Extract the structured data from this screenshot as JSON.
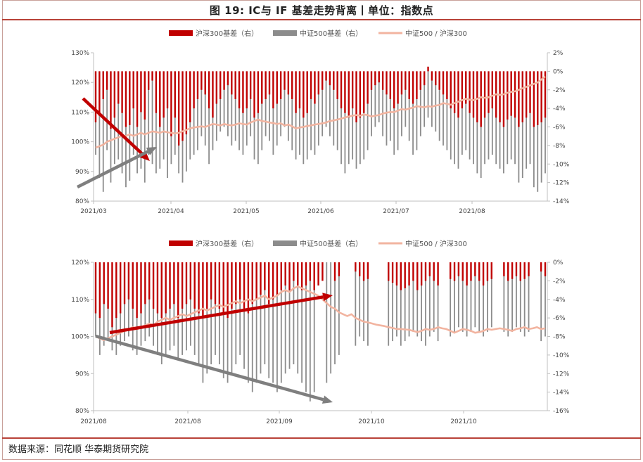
{
  "title": "图 19: IC与 IF 基差走势背离丨单位：指数点",
  "source": "数据来源：同花顺  华泰期货研究院",
  "colors": {
    "if_basis": "#C00000",
    "ic_basis": "#8C8C8C",
    "ratio": "#F2B4A0",
    "red_arrow": "#C00000",
    "gray_arrow": "#7F7F7F",
    "axis": "#BFBFBF"
  },
  "chart_data": [
    {
      "type": "bar+line",
      "legend": [
        "沪深300基差（右）",
        "中证500基差（右）",
        "中证500 / 沪深300"
      ],
      "x_tick_labels": [
        "2021/03",
        "2021/04",
        "2021/05",
        "2021/06",
        "2021/07",
        "2021/08"
      ],
      "y_left_ticks": [
        "80%",
        "90%",
        "100%",
        "110%",
        "120%",
        "130%"
      ],
      "y_left_range": [
        0.8,
        1.3
      ],
      "y_right_ticks": [
        "-14%",
        "-12%",
        "-10%",
        "-8%",
        "-6%",
        "-4%",
        "-2%",
        "0%",
        "2%"
      ],
      "y_right_range": [
        -0.14,
        0.02
      ],
      "n_points": 120,
      "series": [
        {
          "name": "沪深300基差（右）",
          "kind": "bar",
          "values": [
            -0.055,
            -0.048,
            -0.03,
            -0.02,
            -0.062,
            -0.05,
            -0.035,
            -0.045,
            -0.06,
            -0.058,
            -0.04,
            -0.06,
            -0.044,
            -0.052,
            -0.02,
            -0.01,
            -0.045,
            -0.06,
            -0.05,
            -0.04,
            -0.07,
            -0.05,
            -0.08,
            -0.075,
            -0.068,
            -0.055,
            -0.04,
            -0.03,
            -0.02,
            -0.025,
            -0.04,
            -0.05,
            -0.035,
            -0.03,
            -0.02,
            -0.015,
            -0.025,
            -0.03,
            -0.04,
            -0.045,
            -0.04,
            -0.03,
            -0.05,
            -0.045,
            -0.035,
            -0.03,
            -0.025,
            -0.04,
            -0.035,
            -0.03,
            -0.02,
            -0.025,
            -0.03,
            -0.045,
            -0.04,
            -0.05,
            -0.045,
            -0.03,
            -0.035,
            -0.025,
            -0.02,
            -0.01,
            -0.015,
            -0.02,
            -0.03,
            -0.04,
            -0.045,
            -0.05,
            -0.04,
            -0.055,
            -0.05,
            -0.045,
            -0.035,
            -0.02,
            -0.015,
            -0.012,
            -0.02,
            -0.025,
            -0.03,
            -0.04,
            -0.035,
            -0.025,
            -0.02,
            -0.03,
            -0.035,
            -0.03,
            -0.02,
            -0.015,
            0.005,
            -0.01,
            -0.015,
            -0.02,
            -0.025,
            -0.03,
            -0.04,
            -0.045,
            -0.05,
            -0.04,
            -0.035,
            -0.045,
            -0.05,
            -0.055,
            -0.06,
            -0.05,
            -0.045,
            -0.04,
            -0.05,
            -0.055,
            -0.06,
            -0.052,
            -0.048,
            -0.05,
            -0.06,
            -0.055,
            -0.05,
            -0.045,
            -0.06,
            -0.058,
            -0.055,
            -0.05
          ]
        },
        {
          "name": "中证500基差（右）",
          "kind": "bar",
          "values": [
            -0.09,
            -0.115,
            -0.13,
            -0.085,
            -0.12,
            -0.1,
            -0.095,
            -0.11,
            -0.125,
            -0.118,
            -0.09,
            -0.11,
            -0.105,
            -0.12,
            -0.09,
            -0.1,
            -0.11,
            -0.105,
            -0.095,
            -0.115,
            -0.1,
            -0.09,
            -0.11,
            -0.12,
            -0.108,
            -0.095,
            -0.09,
            -0.085,
            -0.07,
            -0.08,
            -0.1,
            -0.085,
            -0.075,
            -0.065,
            -0.06,
            -0.07,
            -0.08,
            -0.075,
            -0.085,
            -0.09,
            -0.08,
            -0.07,
            -0.095,
            -0.1,
            -0.085,
            -0.07,
            -0.075,
            -0.09,
            -0.08,
            -0.07,
            -0.06,
            -0.075,
            -0.085,
            -0.095,
            -0.09,
            -0.1,
            -0.095,
            -0.085,
            -0.09,
            -0.08,
            -0.07,
            -0.06,
            -0.07,
            -0.08,
            -0.085,
            -0.1,
            -0.11,
            -0.1,
            -0.095,
            -0.105,
            -0.1,
            -0.095,
            -0.085,
            -0.07,
            -0.06,
            -0.055,
            -0.07,
            -0.08,
            -0.075,
            -0.09,
            -0.085,
            -0.07,
            -0.06,
            -0.075,
            -0.09,
            -0.085,
            -0.07,
            -0.06,
            -0.05,
            -0.06,
            -0.065,
            -0.075,
            -0.08,
            -0.085,
            -0.095,
            -0.1,
            -0.105,
            -0.09,
            -0.085,
            -0.095,
            -0.1,
            -0.11,
            -0.115,
            -0.1,
            -0.095,
            -0.09,
            -0.1,
            -0.105,
            -0.11,
            -0.1,
            -0.095,
            -0.1,
            -0.12,
            -0.115,
            -0.105,
            -0.1,
            -0.125,
            -0.13,
            -0.12,
            -0.11
          ]
        },
        {
          "name": "中证500 / 沪深300",
          "kind": "line",
          "values": [
            0.98,
            0.985,
            0.99,
            1.0,
            1.005,
            1.01,
            1.015,
            1.02,
            1.02,
            1.025,
            1.02,
            1.025,
            1.03,
            1.025,
            1.03,
            1.035,
            1.033,
            1.03,
            1.035,
            1.032,
            1.03,
            1.028,
            1.03,
            1.035,
            1.04,
            1.045,
            1.048,
            1.05,
            1.052,
            1.05,
            1.055,
            1.06,
            1.058,
            1.055,
            1.06,
            1.057,
            1.055,
            1.058,
            1.062,
            1.06,
            1.058,
            1.065,
            1.07,
            1.075,
            1.07,
            1.068,
            1.065,
            1.063,
            1.06,
            1.062,
            1.055,
            1.058,
            1.052,
            1.045,
            1.048,
            1.05,
            1.053,
            1.055,
            1.058,
            1.06,
            1.062,
            1.065,
            1.07,
            1.072,
            1.075,
            1.078,
            1.082,
            1.085,
            1.088,
            1.09,
            1.088,
            1.092,
            1.09,
            1.085,
            1.088,
            1.09,
            1.095,
            1.098,
            1.1,
            1.1,
            1.105,
            1.11,
            1.108,
            1.112,
            1.115,
            1.12,
            1.118,
            1.116,
            1.12,
            1.118,
            1.122,
            1.124,
            1.13,
            1.128,
            1.125,
            1.13,
            1.135,
            1.14,
            1.145,
            1.142,
            1.14,
            1.145,
            1.15,
            1.148,
            1.15,
            1.155,
            1.16,
            1.158,
            1.16,
            1.165,
            1.168,
            1.17,
            1.175,
            1.18,
            1.185,
            1.19,
            1.195,
            1.2,
            1.21,
            1.22
          ]
        }
      ]
    },
    {
      "type": "bar+line",
      "legend": [
        "沪深300基差（右）",
        "中证500基差（右）",
        "中证500 / 沪深300"
      ],
      "x_tick_labels": [
        "2021/08",
        "2021/08",
        "2021/09",
        "2021/10",
        "2021/10"
      ],
      "y_left_ticks": [
        "80%",
        "90%",
        "100%",
        "110%",
        "120%"
      ],
      "y_left_range": [
        0.8,
        1.2
      ],
      "y_right_ticks": [
        "-16%",
        "-14%",
        "-12%",
        "-10%",
        "-8%",
        "-6%",
        "-4%",
        "-2%",
        "0%"
      ],
      "y_right_range": [
        -0.16,
        0.0
      ],
      "n_points": 110,
      "series": [
        {
          "name": "沪深300基差（右）",
          "kind": "bar",
          "values": [
            -0.055,
            -0.06,
            -0.045,
            -0.05,
            -0.07,
            -0.06,
            -0.055,
            -0.045,
            -0.04,
            -0.05,
            -0.06,
            -0.055,
            -0.045,
            -0.04,
            -0.05,
            -0.055,
            -0.06,
            -0.055,
            -0.05,
            -0.045,
            -0.06,
            -0.05,
            -0.045,
            -0.04,
            -0.05,
            -0.055,
            -0.06,
            -0.05,
            -0.04,
            -0.045,
            -0.05,
            -0.055,
            -0.06,
            -0.05,
            -0.045,
            -0.04,
            -0.05,
            -0.055,
            -0.045,
            -0.04,
            -0.035,
            -0.03,
            -0.045,
            -0.04,
            -0.035,
            -0.03,
            -0.025,
            -0.03,
            -0.02,
            -0.025,
            -0.03,
            -0.025,
            -0.02,
            -0.03,
            -0.025,
            -0.02,
            0,
            0,
            -0.02,
            -0.015,
            0,
            0,
            0,
            -0.01,
            -0.015,
            -0.02,
            -0.018,
            0,
            0,
            0,
            0,
            -0.02,
            -0.022,
            -0.025,
            -0.03,
            -0.028,
            -0.025,
            -0.02,
            -0.03,
            -0.025,
            -0.02,
            -0.015,
            -0.02,
            -0.025,
            0,
            0,
            -0.018,
            -0.02,
            -0.015,
            -0.02,
            -0.025,
            -0.02,
            -0.015,
            -0.02,
            -0.025,
            -0.02,
            -0.018,
            0,
            0,
            -0.015,
            -0.02,
            -0.018,
            -0.015,
            -0.02,
            -0.018,
            -0.015,
            0,
            0,
            -0.01,
            -0.015
          ]
        },
        {
          "name": "中证500基差（右）",
          "kind": "bar",
          "values": [
            -0.08,
            -0.1,
            -0.09,
            -0.085,
            -0.095,
            -0.1,
            -0.09,
            -0.085,
            -0.08,
            -0.095,
            -0.1,
            -0.09,
            -0.085,
            -0.08,
            -0.09,
            -0.1,
            -0.11,
            -0.1,
            -0.095,
            -0.09,
            -0.105,
            -0.1,
            -0.095,
            -0.09,
            -0.1,
            -0.11,
            -0.13,
            -0.12,
            -0.11,
            -0.1,
            -0.11,
            -0.125,
            -0.13,
            -0.12,
            -0.11,
            -0.1,
            -0.115,
            -0.13,
            -0.14,
            -0.13,
            -0.12,
            -0.11,
            -0.125,
            -0.13,
            -0.14,
            -0.13,
            -0.12,
            -0.115,
            -0.11,
            -0.12,
            -0.13,
            -0.14,
            -0.15,
            -0.14,
            0,
            0,
            -0.13,
            -0.12,
            -0.11,
            -0.1,
            0,
            0,
            0,
            -0.09,
            -0.08,
            -0.085,
            -0.09,
            0,
            0,
            0,
            0,
            -0.09,
            -0.085,
            -0.08,
            -0.09,
            -0.085,
            -0.08,
            -0.075,
            -0.08,
            -0.085,
            -0.09,
            -0.08,
            -0.075,
            -0.085,
            0,
            0,
            -0.08,
            -0.075,
            -0.07,
            -0.075,
            -0.08,
            -0.075,
            -0.07,
            -0.075,
            -0.08,
            -0.075,
            -0.07,
            0,
            0,
            -0.075,
            -0.08,
            -0.075,
            -0.07,
            -0.075,
            -0.08,
            -0.075,
            0,
            0,
            -0.085,
            -0.08
          ]
        },
        {
          "name": "中证500 / 沪深300",
          "kind": "line",
          "values": [
            1.0,
            0.995,
            0.99,
            0.995,
            1.0,
            1.005,
            1.01,
            1.015,
            1.02,
            1.025,
            1.02,
            1.025,
            1.03,
            1.035,
            1.03,
            1.04,
            1.045,
            1.05,
            1.045,
            1.05,
            1.055,
            1.06,
            1.055,
            1.06,
            1.065,
            1.07,
            1.075,
            1.07,
            1.075,
            1.08,
            1.085,
            1.08,
            1.085,
            1.09,
            1.095,
            1.09,
            1.095,
            1.1,
            1.095,
            1.1,
            1.105,
            1.11,
            1.1,
            1.105,
            1.11,
            1.12,
            1.125,
            1.12,
            1.13,
            1.135,
            1.13,
            1.125,
            1.12,
            1.115,
            1.11,
            1.1,
            1.09,
            1.08,
            1.075,
            1.065,
            1.06,
            1.055,
            1.06,
            1.05,
            1.045,
            1.04,
            1.038,
            1.035,
            1.032,
            1.03,
            1.028,
            1.025,
            1.023,
            1.02,
            1.02,
            1.019,
            1.018,
            1.015,
            1.012,
            1.015,
            1.02,
            1.018,
            1.02,
            1.025,
            1.022,
            1.02,
            1.015,
            1.01,
            1.015,
            1.02,
            1.018,
            1.015,
            1.01,
            1.012,
            1.015,
            1.02,
            1.018,
            1.02,
            1.022,
            1.02,
            1.018,
            1.015,
            1.02,
            1.022,
            1.025,
            1.02,
            1.022,
            1.025,
            1.02,
            1.022
          ]
        }
      ]
    }
  ]
}
